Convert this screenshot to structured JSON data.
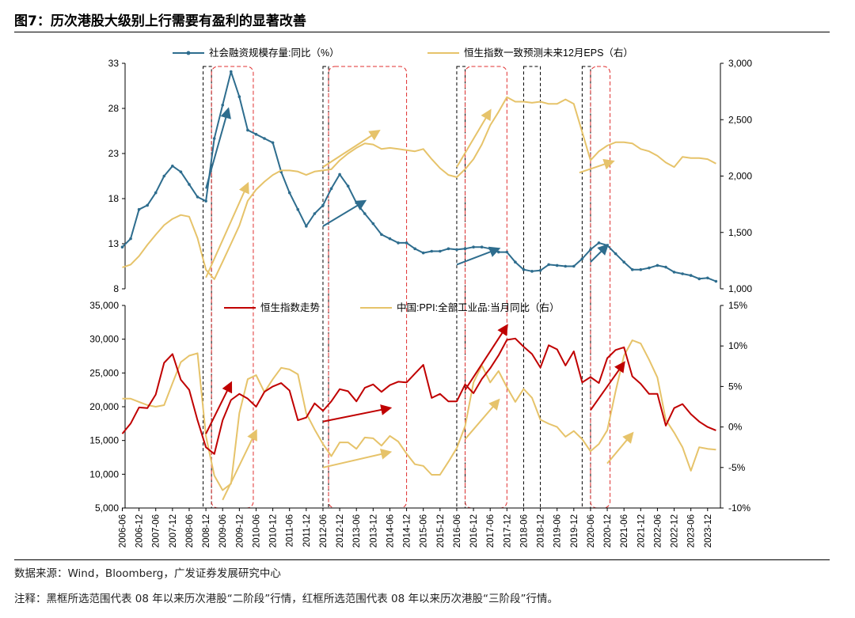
{
  "figure": {
    "title": "图7：历次港股大级别上行需要有盈利的显著改善",
    "source": "数据来源：Wind，Bloomberg，广发证券发展研究中心",
    "note": "注释：黑框所选范围代表 08 年以来历次港股“二阶段”行情，红框所选范围代表 08 年以来历次港股“三阶段”行情。"
  },
  "chart_data": [
    {
      "type": "line",
      "panel": "top",
      "series": [
        {
          "name": "社会融资规模存量:同比（%）",
          "axis": "left",
          "color": "#2e6d8e",
          "marker": "dot",
          "x": [
            "2006-06",
            "2006-09",
            "2006-12",
            "2007-03",
            "2007-06",
            "2007-09",
            "2007-12",
            "2008-03",
            "2008-06",
            "2008-09",
            "2008-12",
            "2009-03",
            "2009-06",
            "2009-09",
            "2009-12",
            "2010-03",
            "2010-06",
            "2010-09",
            "2010-12",
            "2011-03",
            "2011-06",
            "2011-09",
            "2011-12",
            "2012-03",
            "2012-06",
            "2012-09",
            "2012-12",
            "2013-03",
            "2013-06",
            "2013-09",
            "2013-12",
            "2014-03",
            "2014-06",
            "2014-09",
            "2014-12",
            "2015-03",
            "2015-06",
            "2015-09",
            "2015-12",
            "2016-03",
            "2016-06",
            "2016-09",
            "2016-12",
            "2017-03",
            "2017-06",
            "2017-09",
            "2017-12",
            "2018-03",
            "2018-06",
            "2018-09",
            "2018-12",
            "2019-03",
            "2019-06",
            "2019-09",
            "2019-12",
            "2020-03",
            "2020-06",
            "2020-09",
            "2020-12",
            "2021-03",
            "2021-06",
            "2021-09",
            "2021-12",
            "2022-03",
            "2022-06",
            "2022-09",
            "2022-12",
            "2023-03",
            "2023-06",
            "2023-09",
            "2023-12",
            "2024-03"
          ],
          "values": [
            13,
            14,
            17.5,
            18,
            19.5,
            21.5,
            22.7,
            22,
            20.5,
            19,
            18.5,
            26,
            30,
            34,
            31,
            27,
            26.5,
            26,
            25.5,
            22,
            19.5,
            17.5,
            15.5,
            17,
            18,
            20,
            21.7,
            20.3,
            18.3,
            17,
            15.8,
            14.5,
            14,
            13.5,
            13.5,
            12.8,
            12.3,
            12.5,
            12.5,
            12.8,
            12.7,
            12.8,
            13,
            13,
            12.8,
            12.4,
            12.4,
            11.2,
            10.3,
            10.1,
            10.2,
            10.9,
            10.8,
            10.7,
            10.7,
            11.6,
            12.7,
            13.5,
            13.2,
            12.2,
            11.2,
            10.3,
            10.3,
            10.5,
            10.8,
            10.6,
            10,
            9.8,
            9.6,
            9.2,
            9.3,
            8.9
          ]
        },
        {
          "name": "恒生指数一致预测未来12月EPS（右）",
          "axis": "right",
          "color": "#e6c36a",
          "x": [
            "2006-06",
            "2006-09",
            "2006-12",
            "2007-03",
            "2007-06",
            "2007-09",
            "2007-12",
            "2008-03",
            "2008-06",
            "2008-09",
            "2008-12",
            "2009-03",
            "2009-06",
            "2009-09",
            "2009-12",
            "2010-03",
            "2010-06",
            "2010-09",
            "2010-12",
            "2011-03",
            "2011-06",
            "2011-09",
            "2011-12",
            "2012-03",
            "2012-06",
            "2012-09",
            "2012-12",
            "2013-03",
            "2013-06",
            "2013-09",
            "2013-12",
            "2014-03",
            "2014-06",
            "2014-09",
            "2014-12",
            "2015-03",
            "2015-06",
            "2015-09",
            "2015-12",
            "2016-03",
            "2016-06",
            "2016-09",
            "2016-12",
            "2017-03",
            "2017-06",
            "2017-09",
            "2017-12",
            "2018-03",
            "2018-06",
            "2018-09",
            "2018-12",
            "2019-03",
            "2019-06",
            "2019-09",
            "2019-12",
            "2020-03",
            "2020-06",
            "2020-09",
            "2020-12",
            "2021-03",
            "2021-06",
            "2021-09",
            "2021-12",
            "2022-03",
            "2022-06",
            "2022-09",
            "2022-12",
            "2023-03",
            "2023-06",
            "2023-09",
            "2023-12",
            "2024-03"
          ],
          "values": [
            1190,
            1215,
            1290,
            1390,
            1480,
            1565,
            1620,
            1655,
            1640,
            1450,
            1170,
            1085,
            1240,
            1400,
            1560,
            1780,
            1880,
            1950,
            2010,
            2050,
            2050,
            2040,
            2010,
            2040,
            2050,
            2060,
            2140,
            2200,
            2250,
            2290,
            2280,
            2240,
            2250,
            2240,
            2230,
            2220,
            2240,
            2150,
            2070,
            2010,
            1990,
            2060,
            2150,
            2280,
            2450,
            2570,
            2700,
            2660,
            2660,
            2650,
            2660,
            2640,
            2640,
            2680,
            2640,
            2390,
            2140,
            2220,
            2270,
            2300,
            2300,
            2290,
            2240,
            2220,
            2180,
            2120,
            2080,
            2170,
            2160,
            2160,
            2150,
            2110
          ]
        }
      ],
      "ylim_left": [
        8,
        35
      ],
      "yticks_left": [
        "8",
        "13",
        "18",
        "23",
        "28",
        "33"
      ],
      "ylim_right": [
        1000,
        3000
      ],
      "yticks_right": [
        "1,000",
        "1,500",
        "2,000",
        "2,500",
        "3,000"
      ],
      "legend": "top"
    },
    {
      "type": "line",
      "panel": "bottom",
      "series": [
        {
          "name": "恒生指数走势",
          "axis": "left",
          "color": "#c00000",
          "x": [
            "2006-06",
            "2006-09",
            "2006-12",
            "2007-03",
            "2007-06",
            "2007-09",
            "2007-12",
            "2008-03",
            "2008-06",
            "2008-09",
            "2008-12",
            "2009-03",
            "2009-06",
            "2009-09",
            "2009-12",
            "2010-03",
            "2010-06",
            "2010-09",
            "2010-12",
            "2011-03",
            "2011-06",
            "2011-09",
            "2011-12",
            "2012-03",
            "2012-06",
            "2012-09",
            "2012-12",
            "2013-03",
            "2013-06",
            "2013-09",
            "2013-12",
            "2014-03",
            "2014-06",
            "2014-09",
            "2014-12",
            "2015-03",
            "2015-06",
            "2015-09",
            "2015-12",
            "2016-03",
            "2016-06",
            "2016-09",
            "2016-12",
            "2017-03",
            "2017-06",
            "2017-09",
            "2017-12",
            "2018-03",
            "2018-06",
            "2018-09",
            "2018-12",
            "2019-03",
            "2019-06",
            "2019-09",
            "2019-12",
            "2020-03",
            "2020-06",
            "2020-09",
            "2020-12",
            "2021-03",
            "2021-06",
            "2021-09",
            "2021-12",
            "2022-03",
            "2022-06",
            "2022-09",
            "2022-12",
            "2023-03",
            "2023-06",
            "2023-09",
            "2023-12",
            "2024-03"
          ],
          "values": [
            16000,
            17500,
            19900,
            19800,
            21800,
            26500,
            27800,
            24000,
            22500,
            18000,
            14000,
            13000,
            18000,
            21000,
            21900,
            21200,
            20000,
            22200,
            23000,
            23500,
            22400,
            18000,
            18400,
            20500,
            19400,
            20800,
            22600,
            22300,
            20800,
            22800,
            23300,
            22200,
            23200,
            23700,
            23600,
            24900,
            26200,
            21300,
            21900,
            20800,
            20800,
            23300,
            22000,
            24100,
            25700,
            27600,
            29900,
            30100,
            28900,
            27800,
            25800,
            29100,
            28500,
            26100,
            28200,
            23600,
            24400,
            23500,
            27200,
            28400,
            28800,
            24500,
            23400,
            21900,
            21900,
            17200,
            19800,
            20400,
            18900,
            17800,
            17000,
            16500
          ]
        },
        {
          "name": "中国:PPI:全部工业品:当月同比（右）",
          "axis": "right",
          "color": "#e6c36a",
          "x": [
            "2006-06",
            "2006-09",
            "2006-12",
            "2007-03",
            "2007-06",
            "2007-09",
            "2007-12",
            "2008-03",
            "2008-06",
            "2008-09",
            "2008-12",
            "2009-03",
            "2009-06",
            "2009-09",
            "2009-12",
            "2010-03",
            "2010-06",
            "2010-09",
            "2010-12",
            "2011-03",
            "2011-06",
            "2011-09",
            "2011-12",
            "2012-03",
            "2012-06",
            "2012-09",
            "2012-12",
            "2013-03",
            "2013-06",
            "2013-09",
            "2013-12",
            "2014-03",
            "2014-06",
            "2014-09",
            "2014-12",
            "2015-03",
            "2015-06",
            "2015-09",
            "2015-12",
            "2016-03",
            "2016-06",
            "2016-09",
            "2016-12",
            "2017-03",
            "2017-06",
            "2017-09",
            "2017-12",
            "2018-03",
            "2018-06",
            "2018-09",
            "2018-12",
            "2019-03",
            "2019-06",
            "2019-09",
            "2019-12",
            "2020-03",
            "2020-06",
            "2020-09",
            "2020-12",
            "2021-03",
            "2021-06",
            "2021-09",
            "2021-12",
            "2022-03",
            "2022-06",
            "2022-09",
            "2022-12",
            "2023-03",
            "2023-06",
            "2023-09",
            "2023-12",
            "2024-03"
          ],
          "values": [
            3.5,
            3.5,
            3.1,
            2.7,
            2.5,
            2.7,
            5.4,
            8.0,
            8.8,
            9.1,
            -1.1,
            -6.0,
            -7.8,
            -7.0,
            1.7,
            5.9,
            6.4,
            4.3,
            5.9,
            7.3,
            7.1,
            6.5,
            1.7,
            -0.3,
            -2.1,
            -3.6,
            -1.9,
            -1.9,
            -2.7,
            -1.3,
            -1.4,
            -2.3,
            -1.1,
            -1.8,
            -3.3,
            -4.6,
            -4.8,
            -5.9,
            -5.9,
            -4.3,
            -2.6,
            0.1,
            5.5,
            7.6,
            5.5,
            6.9,
            4.9,
            3.1,
            4.7,
            3.6,
            0.9,
            0.4,
            0.0,
            -1.2,
            -0.5,
            -1.5,
            -3.0,
            -2.1,
            -0.4,
            4.4,
            8.8,
            10.7,
            10.3,
            8.3,
            6.1,
            0.9,
            -0.7,
            -2.5,
            -5.4,
            -2.5,
            -2.7,
            -2.8
          ]
        }
      ],
      "ylim_left": [
        5000,
        35000
      ],
      "yticks_left": [
        "5,000",
        "10,000",
        "15,000",
        "20,000",
        "25,000",
        "30,000",
        "35,000"
      ],
      "ylim_right": [
        -10,
        15
      ],
      "yticks_right": [
        "-10%",
        "-5%",
        "0%",
        "5%",
        "10%",
        "15%"
      ],
      "legend": "top"
    }
  ],
  "x_axis": {
    "tick_labels": [
      "2006-06",
      "2006-12",
      "2007-06",
      "2007-12",
      "2008-06",
      "2008-12",
      "2009-06",
      "2009-12",
      "2010-06",
      "2010-12",
      "2011-06",
      "2011-12",
      "2012-06",
      "2012-12",
      "2013-06",
      "2013-12",
      "2014-06",
      "2014-12",
      "2015-06",
      "2015-12",
      "2016-06",
      "2016-12",
      "2017-06",
      "2017-12",
      "2018-06",
      "2018-12",
      "2019-06",
      "2019-12",
      "2020-06",
      "2020-12",
      "2021-06",
      "2021-12",
      "2022-06",
      "2022-12",
      "2023-06",
      "2023-12"
    ]
  },
  "highlight_ranges": {
    "black_dashed": [
      [
        "2008-11",
        "2009-02"
      ],
      [
        "2012-06",
        "2012-08"
      ],
      [
        "2016-06",
        "2016-09"
      ],
      [
        "2018-06",
        "2018-12"
      ],
      [
        "2020-03",
        "2020-06"
      ]
    ],
    "red_dashed": [
      [
        "2009-02",
        "2010-05"
      ],
      [
        "2012-08",
        "2014-12"
      ],
      [
        "2016-09",
        "2017-12"
      ],
      [
        "2020-06",
        "2021-01"
      ]
    ]
  },
  "arrow_annotations": {
    "top": [
      {
        "series": 0,
        "from": [
          "2008-12",
          20
        ],
        "to": [
          "2009-08",
          29.5
        ]
      },
      {
        "series": 1,
        "from": [
          "2008-12",
          1100
        ],
        "to": [
          "2010-03",
          1930
        ]
      },
      {
        "series": 1,
        "from": [
          "2012-06",
          2080
        ],
        "to": [
          "2014-02",
          2400
        ]
      },
      {
        "series": 0,
        "from": [
          "2012-06",
          15.5
        ],
        "to": [
          "2013-09",
          18.5
        ]
      },
      {
        "series": 1,
        "from": [
          "2016-06",
          2080
        ],
        "to": [
          "2017-06",
          2580
        ]
      },
      {
        "series": 0,
        "from": [
          "2016-06",
          10.9
        ],
        "to": [
          "2017-09",
          12.8
        ]
      },
      {
        "series": 1,
        "from": [
          "2020-02",
          2030
        ],
        "to": [
          "2021-02",
          2130
        ]
      },
      {
        "series": 0,
        "from": [
          "2020-06",
          11.2
        ],
        "to": [
          "2020-12",
          13.2
        ]
      }
    ],
    "bottom": [
      {
        "series": 0,
        "from": [
          "2008-12",
          16000
        ],
        "to": [
          "2009-09",
          23500
        ]
      },
      {
        "series": 1,
        "from": [
          "2009-06",
          -9.0
        ],
        "to": [
          "2010-06",
          -0.5
        ]
      },
      {
        "series": 0,
        "from": [
          "2012-06",
          17800
        ],
        "to": [
          "2014-06",
          19800
        ]
      },
      {
        "series": 1,
        "from": [
          "2012-06",
          -5.0
        ],
        "to": [
          "2014-06",
          -3.1
        ]
      },
      {
        "series": 0,
        "from": [
          "2016-09",
          22500
        ],
        "to": [
          "2017-12",
          32000
        ]
      },
      {
        "series": 1,
        "from": [
          "2016-09",
          -1.5
        ],
        "to": [
          "2017-09",
          3.3
        ]
      },
      {
        "series": 0,
        "from": [
          "2020-06",
          19500
        ],
        "to": [
          "2021-06",
          26500
        ]
      },
      {
        "series": 1,
        "from": [
          "2020-12",
          -4.5
        ],
        "to": [
          "2021-09",
          -0.8
        ]
      }
    ]
  },
  "colors": {
    "blue": "#2e6d8e",
    "gold": "#e6c36a",
    "red": "#c00000",
    "arrow_blue": "#2e6d8e",
    "arrow_gold": "#e6c36a",
    "arrow_red": "#c00000"
  }
}
